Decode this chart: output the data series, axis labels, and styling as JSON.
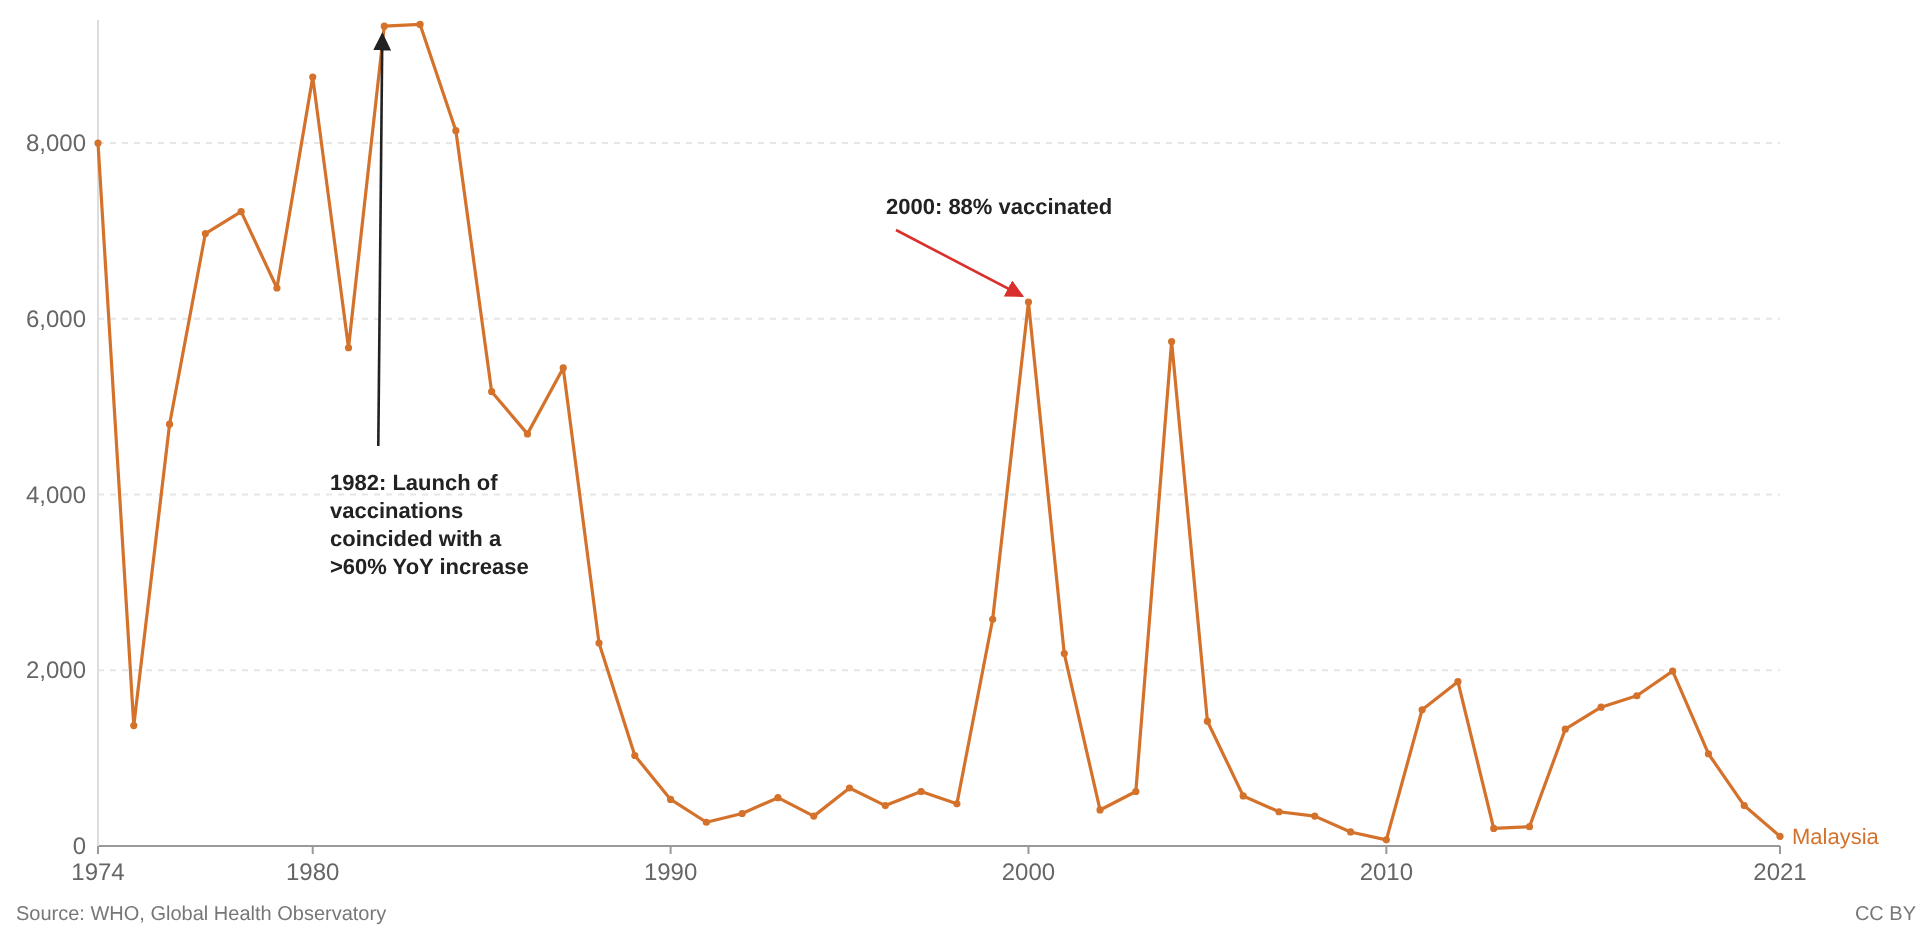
{
  "chart_data": {
    "type": "line",
    "x": [
      1974,
      1975,
      1976,
      1977,
      1978,
      1979,
      1980,
      1981,
      1982,
      1983,
      1984,
      1985,
      1986,
      1987,
      1988,
      1989,
      1990,
      1991,
      1992,
      1993,
      1994,
      1995,
      1996,
      1997,
      1998,
      1999,
      2000,
      2001,
      2002,
      2003,
      2004,
      2005,
      2006,
      2007,
      2008,
      2009,
      2010,
      2011,
      2012,
      2013,
      2014,
      2015,
      2016,
      2017,
      2018,
      2019,
      2020,
      2021
    ],
    "series": [
      {
        "name": "Malaysia",
        "color": "#d4722c",
        "values": [
          8000,
          1370,
          4800,
          6970,
          7220,
          6350,
          8750,
          5670,
          9330,
          9350,
          8140,
          5170,
          4690,
          5440,
          2310,
          1030,
          530,
          270,
          370,
          550,
          340,
          660,
          460,
          620,
          480,
          2580,
          6190,
          2190,
          410,
          620,
          5740,
          1420,
          570,
          390,
          340,
          160,
          70,
          1550,
          1870,
          200,
          220,
          1330,
          1580,
          1710,
          1990,
          1050,
          460,
          110
        ]
      }
    ],
    "xlim": [
      1974,
      2021
    ],
    "xticks": [
      1974,
      1980,
      1990,
      2000,
      2010,
      2021
    ],
    "ylim": [
      0,
      9400
    ],
    "yticks": [
      0,
      {
        "value": 2000,
        "label": "2,000"
      },
      {
        "value": 4000,
        "label": "4,000"
      },
      {
        "value": 6000,
        "label": "6,000"
      },
      {
        "value": 8000,
        "label": "8,000"
      }
    ],
    "grid": "y",
    "marker": "circle",
    "line_style": "solid",
    "annotations": [
      {
        "text": "1982: Launch of vaccinations coincided with a >60% YoY increase",
        "x": 1982,
        "y": 9330
      },
      {
        "text": "2000: 88% vaccinated",
        "x": 2000,
        "y": 6190
      },
      "Source: WHO, Global Health Observatory",
      "CC BY"
    ]
  }
}
